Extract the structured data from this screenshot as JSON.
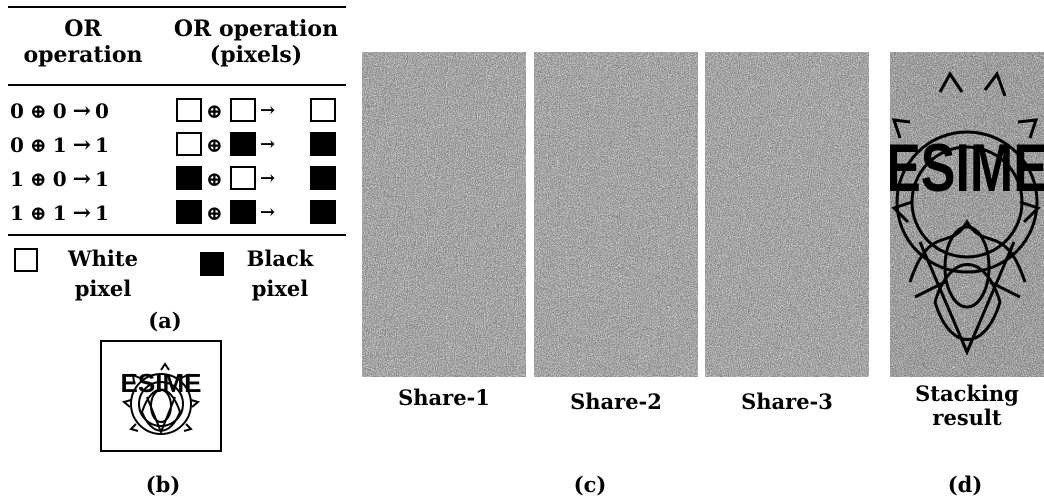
{
  "panel_a": {
    "header_left": "OR operation",
    "header_right": "OR operation (pixels)",
    "rows": [
      {
        "a": "0",
        "op": "⊕",
        "b": "0",
        "arrow": "→",
        "r": "0",
        "pa": "white",
        "pb": "white",
        "pr": "white"
      },
      {
        "a": "0",
        "op": "⊕",
        "b": "1",
        "arrow": "→",
        "r": "1",
        "pa": "white",
        "pb": "black",
        "pr": "black"
      },
      {
        "a": "1",
        "op": "⊕",
        "b": "0",
        "arrow": "→",
        "r": "1",
        "pa": "black",
        "pb": "white",
        "pr": "black"
      },
      {
        "a": "1",
        "op": "⊕",
        "b": "1",
        "arrow": "→",
        "r": "1",
        "pa": "black",
        "pb": "black",
        "pr": "black"
      }
    ],
    "legend_white": "White pixel",
    "legend_black": "Black pixel",
    "caption": "(a)"
  },
  "panel_b": {
    "logo_text": "ESIME",
    "caption": "(b)"
  },
  "panel_c": {
    "shares": [
      "Share-1",
      "Share-2",
      "Share-3"
    ],
    "caption": "(c)"
  },
  "panel_d": {
    "label": "Stacking result",
    "logo_text": "ESIME",
    "caption": "(d)"
  }
}
